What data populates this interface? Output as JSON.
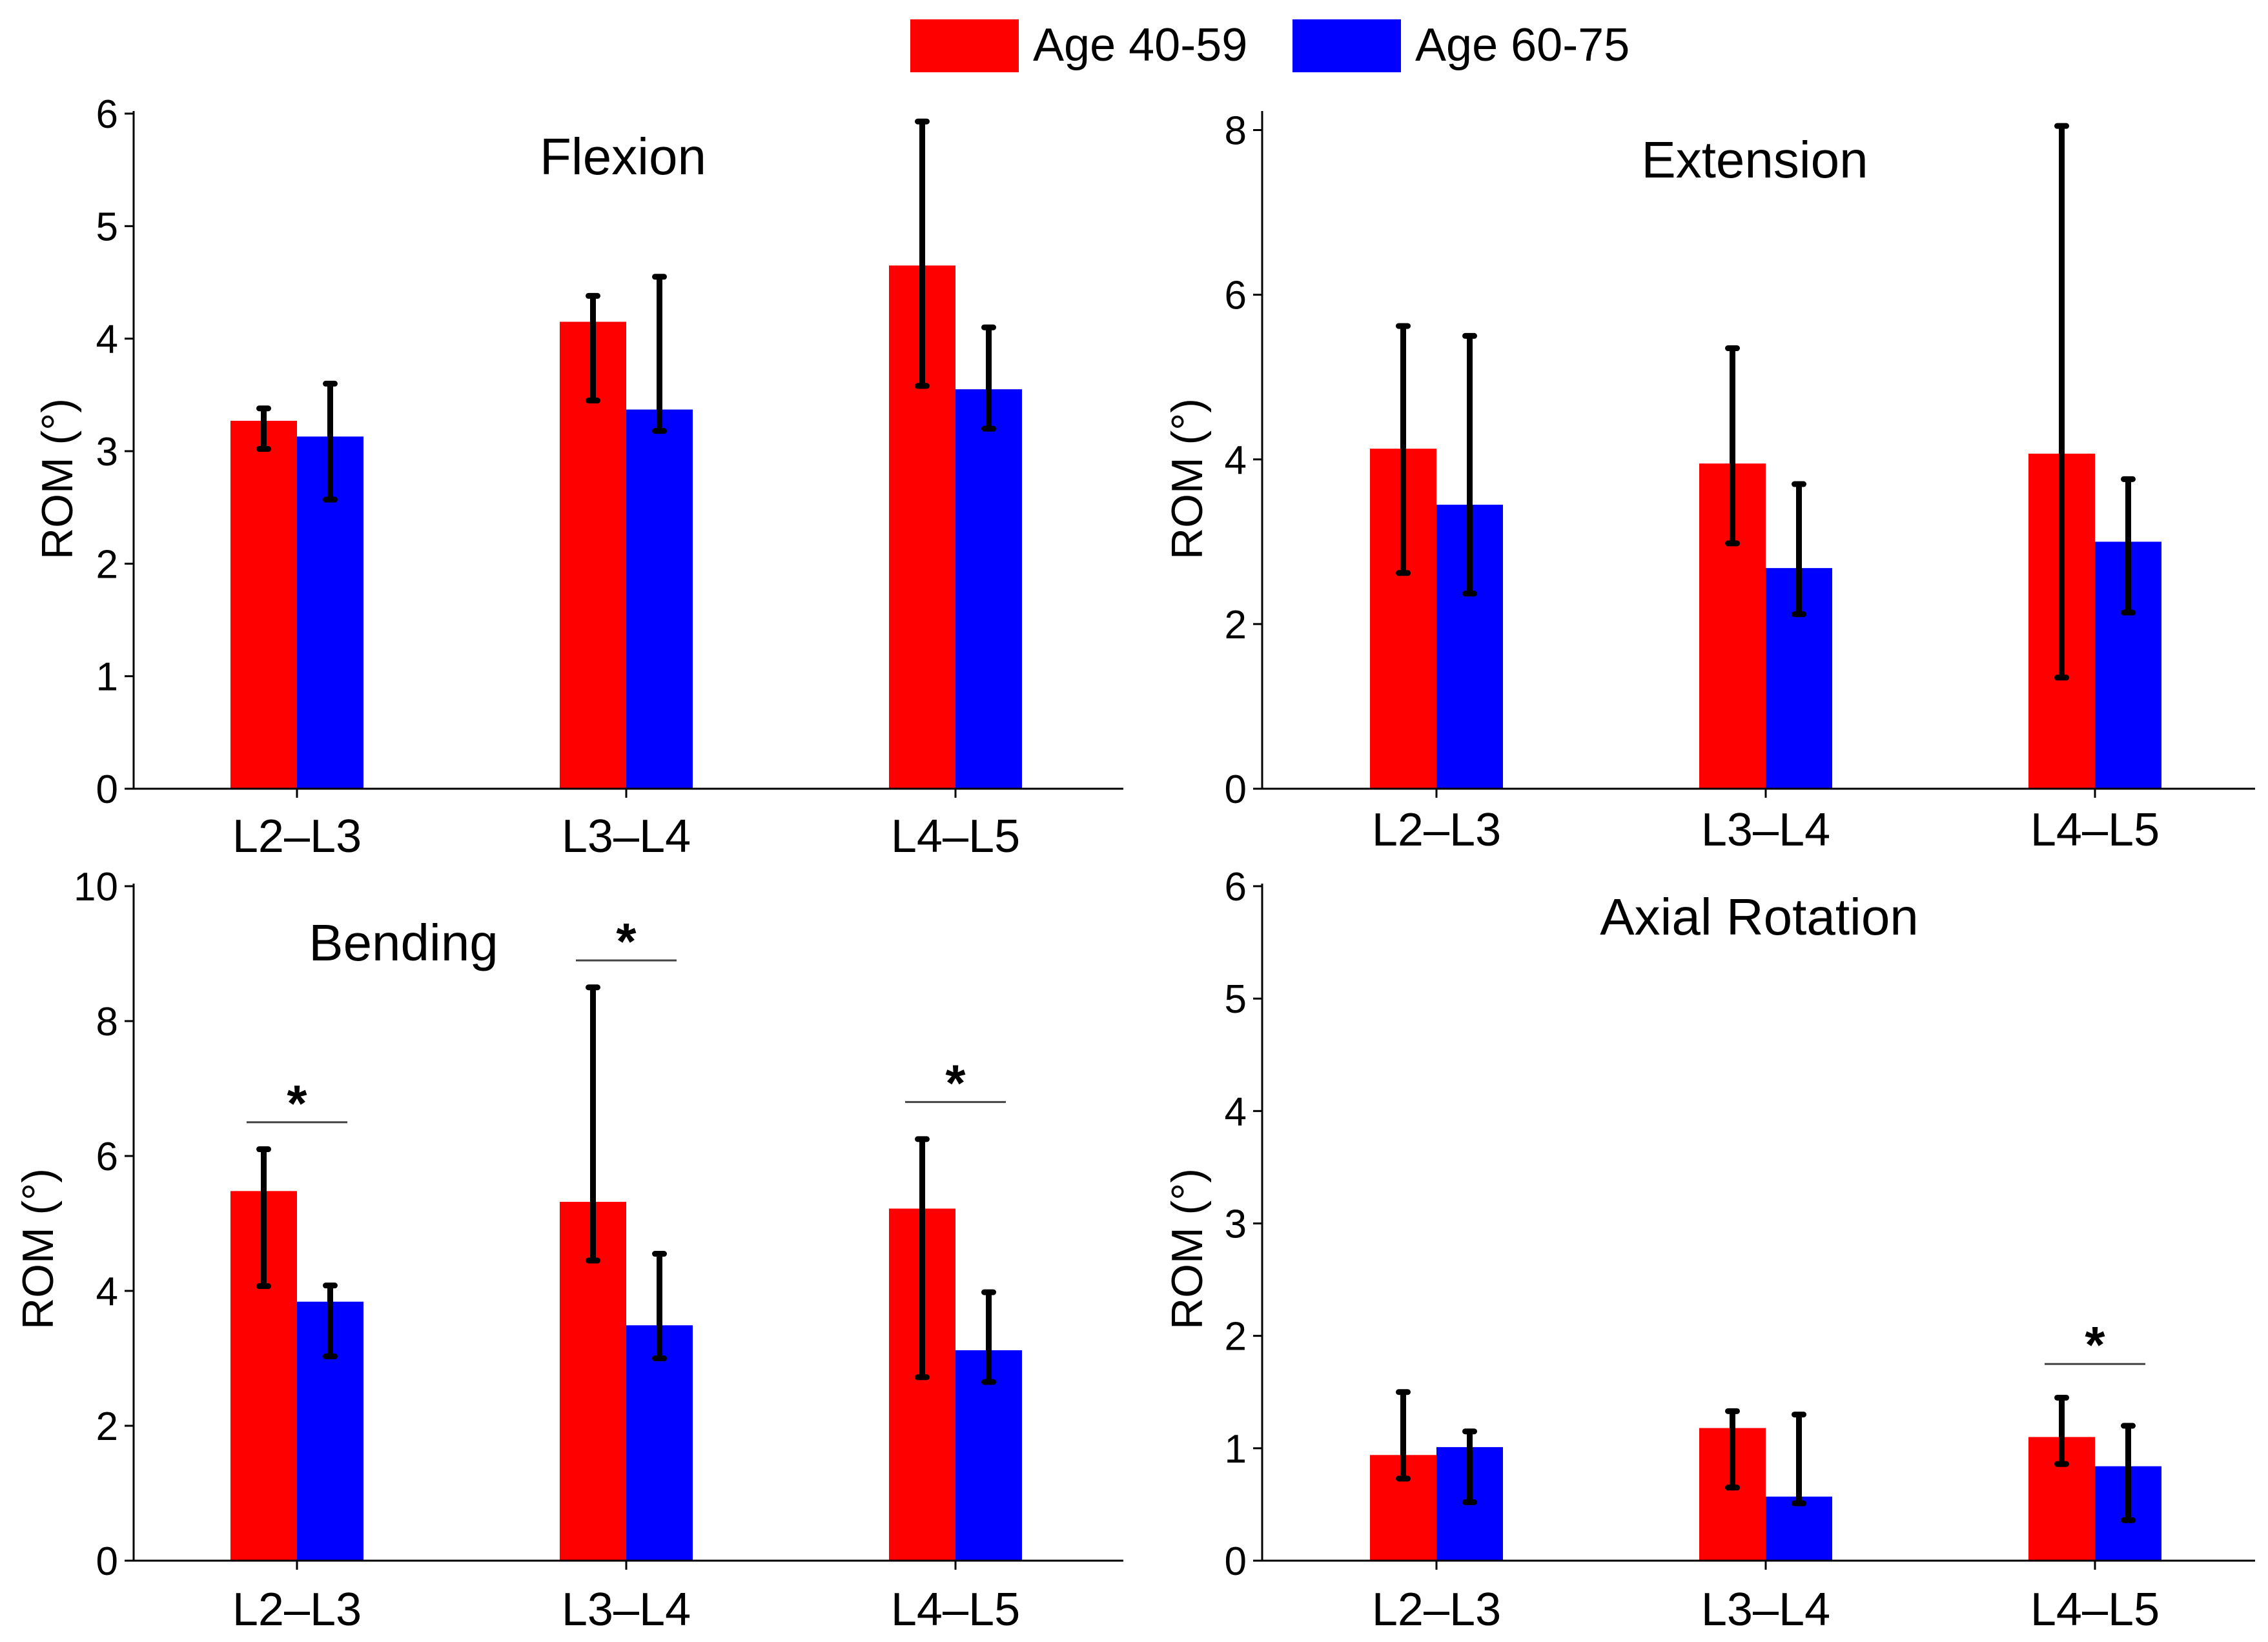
{
  "legend": {
    "position": "top-center",
    "entries": [
      {
        "label": "Age 40-59",
        "color": "#ff0000"
      },
      {
        "label": "Age 60-75",
        "color": "#0000ff"
      }
    ]
  },
  "chart_data": [
    {
      "type": "bar",
      "title": "Flexion",
      "xlabel": "",
      "ylabel": "ROM (°)",
      "ylim": [
        0,
        6
      ],
      "yticks": [
        0,
        1,
        2,
        3,
        4,
        5,
        6
      ],
      "categories": [
        "L2–L3",
        "L3–L4",
        "L4–L5"
      ],
      "grid": false,
      "series": [
        {
          "name": "Age 40-59",
          "color": "#ff0000",
          "values": [
            3.27,
            4.15,
            4.65
          ],
          "err_low": [
            3.02,
            3.45,
            3.58
          ],
          "err_high": [
            3.38,
            4.38,
            5.93
          ]
        },
        {
          "name": "Age 60-75",
          "color": "#0000ff",
          "values": [
            3.13,
            3.37,
            3.55
          ],
          "err_low": [
            2.57,
            3.18,
            3.2
          ],
          "err_high": [
            3.6,
            4.55,
            4.1
          ]
        }
      ],
      "significance": []
    },
    {
      "type": "bar",
      "title": "Extension",
      "xlabel": "",
      "ylabel": "ROM (°)",
      "ylim": [
        0,
        8.2
      ],
      "yticks": [
        0,
        2,
        4,
        6,
        8
      ],
      "categories": [
        "L2–L3",
        "L3–L4",
        "L4–L5"
      ],
      "grid": false,
      "series": [
        {
          "name": "Age 40-59",
          "color": "#ff0000",
          "values": [
            4.13,
            3.95,
            4.07
          ],
          "err_low": [
            2.62,
            2.98,
            1.35
          ],
          "err_high": [
            5.62,
            5.35,
            8.05
          ]
        },
        {
          "name": "Age 60-75",
          "color": "#0000ff",
          "values": [
            3.45,
            2.68,
            3.0
          ],
          "err_low": [
            2.37,
            2.12,
            2.14
          ],
          "err_high": [
            5.5,
            3.7,
            3.76
          ]
        }
      ],
      "significance": []
    },
    {
      "type": "bar",
      "title": "Bending",
      "xlabel": "",
      "ylabel": "ROM (°)",
      "ylim": [
        0,
        10
      ],
      "yticks": [
        0,
        2,
        4,
        6,
        8,
        10
      ],
      "categories": [
        "L2–L3",
        "L3–L4",
        "L4–L5"
      ],
      "grid": false,
      "series": [
        {
          "name": "Age 40-59",
          "color": "#ff0000",
          "values": [
            5.48,
            5.32,
            5.22
          ],
          "err_low": [
            4.07,
            4.45,
            2.72
          ],
          "err_high": [
            6.1,
            8.5,
            6.25
          ]
        },
        {
          "name": "Age 60-75",
          "color": "#0000ff",
          "values": [
            3.84,
            3.49,
            3.12
          ],
          "err_low": [
            3.03,
            3.0,
            2.65
          ],
          "err_high": [
            4.08,
            4.55,
            3.98
          ]
        }
      ],
      "significance": [
        {
          "category_index": 0,
          "y": 6.5,
          "label": "*"
        },
        {
          "category_index": 1,
          "y": 8.9,
          "label": "*"
        },
        {
          "category_index": 2,
          "y": 6.8,
          "label": "*"
        }
      ]
    },
    {
      "type": "bar",
      "title": "Axial Rotation",
      "xlabel": "",
      "ylabel": "ROM (°)",
      "ylim": [
        0,
        6
      ],
      "yticks": [
        0,
        1,
        2,
        3,
        4,
        5,
        6
      ],
      "categories": [
        "L2–L3",
        "L3–L4",
        "L4–L5"
      ],
      "grid": false,
      "series": [
        {
          "name": "Age 40-59",
          "color": "#ff0000",
          "values": [
            0.94,
            1.18,
            1.1
          ],
          "err_low": [
            0.73,
            0.65,
            0.86
          ],
          "err_high": [
            1.5,
            1.33,
            1.45
          ]
        },
        {
          "name": "Age 60-75",
          "color": "#0000ff",
          "values": [
            1.01,
            0.57,
            0.84
          ],
          "err_low": [
            0.52,
            0.51,
            0.36
          ],
          "err_high": [
            1.15,
            1.3,
            1.2
          ]
        }
      ],
      "significance": [
        {
          "category_index": 2,
          "y": 1.75,
          "label": "*"
        }
      ]
    }
  ]
}
